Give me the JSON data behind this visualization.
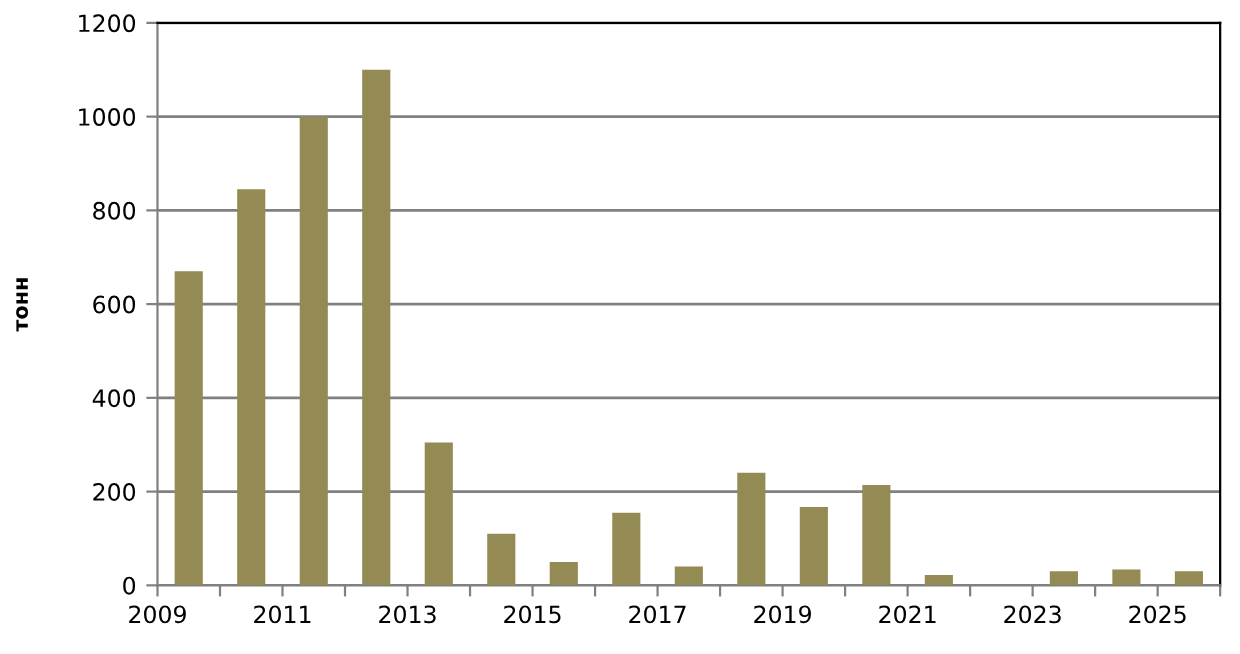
{
  "chart_data": {
    "type": "bar",
    "ylabel": "тонн",
    "categories": [
      "2009",
      null,
      "2011",
      null,
      "2013",
      null,
      "2015",
      null,
      "2017",
      null,
      "2019",
      null,
      "2021",
      null,
      "2023",
      null,
      "2025"
    ],
    "values": [
      670,
      845,
      1000,
      1100,
      305,
      110,
      50,
      155,
      40,
      240,
      167,
      214,
      22,
      null,
      30,
      34,
      30
    ],
    "color": "#948a54",
    "ylim": [
      0,
      1200
    ],
    "yticks": [
      0,
      200,
      400,
      600,
      800,
      1000,
      1200
    ],
    "grid": "y"
  }
}
